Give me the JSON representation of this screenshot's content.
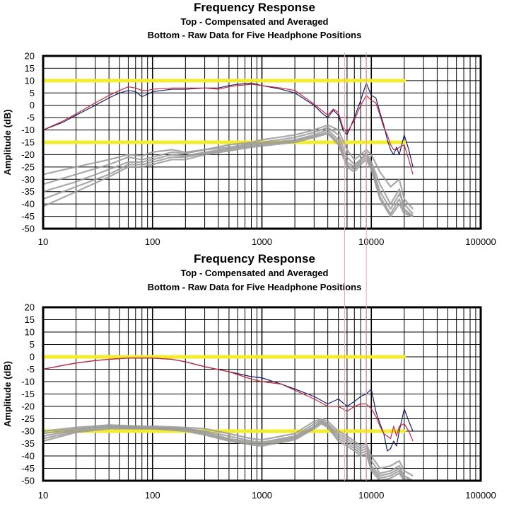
{
  "colors": {
    "compensated_dark": "#1a1f66",
    "compensated_red": "#c8283c",
    "raw": "#9a9a9a",
    "reference": "#f2ec2c",
    "marker": "#e9a8b8",
    "grid": "#000000"
  },
  "chart_data": [
    {
      "type": "line",
      "title": "Frequency Response",
      "subtitle_top": "Top -  Compensated and Averaged",
      "subtitle_bottom": "Bottom - Raw Data for Five Headphone Positions",
      "xlabel": "",
      "ylabel": "Amplitude (dB)",
      "xscale": "log",
      "xlim": [
        10,
        100000
      ],
      "ylim": [
        -50,
        20
      ],
      "x_ticks": [
        10,
        100,
        1000,
        10000,
        100000
      ],
      "x_tick_labels": [
        "10",
        "100",
        "1000",
        "10000",
        "100000"
      ],
      "y_ticks": [
        20,
        15,
        10,
        5,
        0,
        -5,
        -10,
        -15,
        -20,
        -25,
        -30,
        -35,
        -40,
        -45,
        -50
      ],
      "grid": true,
      "reference_lines": [
        10,
        -15
      ],
      "series": [
        {
          "role": "compensated",
          "color_key": "compensated_dark",
          "x": [
            10,
            15,
            20,
            30,
            40,
            50,
            60,
            70,
            80,
            90,
            100,
            150,
            200,
            300,
            400,
            500,
            600,
            800,
            1000,
            1500,
            2000,
            3000,
            3500,
            4000,
            4500,
            5000,
            5500,
            6000,
            7000,
            8000,
            9000,
            10000,
            11000,
            12000,
            13000,
            14000,
            15000,
            16000,
            17000,
            18000,
            20000,
            22000,
            24000
          ],
          "y": [
            -10,
            -7,
            -4,
            0,
            3,
            5,
            6,
            5.5,
            3.5,
            4.5,
            5.5,
            6.5,
            6.5,
            7,
            7,
            8,
            8.5,
            9,
            8,
            6.5,
            5,
            0,
            -3,
            -5,
            -2,
            -4,
            -10,
            -12,
            -5,
            2,
            9,
            4,
            3,
            -3,
            -8,
            -14,
            -18,
            -20,
            -17,
            -20,
            -12,
            -18,
            -25
          ]
        },
        {
          "role": "compensated",
          "color_key": "compensated_red",
          "x": [
            10,
            15,
            20,
            30,
            40,
            50,
            60,
            70,
            80,
            90,
            100,
            150,
            200,
            300,
            400,
            500,
            600,
            800,
            1000,
            1500,
            2000,
            3000,
            3500,
            4000,
            4500,
            5000,
            5500,
            6000,
            7000,
            8000,
            9000,
            10000,
            11000,
            12000,
            13000,
            14000,
            15000,
            16000,
            17000,
            18000,
            20000,
            22000,
            24000
          ],
          "y": [
            -10,
            -6.5,
            -3.5,
            1,
            4,
            6,
            7.5,
            7,
            6,
            6,
            6.5,
            7,
            7,
            7,
            6.5,
            7.5,
            8,
            8.5,
            8,
            7,
            6,
            0.5,
            -2,
            -4,
            -1.5,
            -3,
            -9,
            -11,
            -6,
            0,
            4,
            2,
            1,
            -4,
            -9,
            -12,
            -16,
            -18,
            -18,
            -17,
            -16,
            -22,
            -28
          ]
        },
        {
          "role": "raw",
          "color_key": "raw",
          "x": [
            10,
            20,
            40,
            60,
            80,
            100,
            150,
            200,
            300,
            500,
            800,
            1000,
            2000,
            3000,
            4000,
            5000,
            6000,
            7000,
            8000,
            9000,
            10000,
            12000,
            15000,
            18000,
            20000,
            24000
          ],
          "y": [
            -28,
            -25,
            -22,
            -20,
            -20.5,
            -19,
            -18,
            -19,
            -18,
            -16,
            -15,
            -14,
            -12,
            -10,
            -8,
            -10,
            -18,
            -22,
            -20,
            -18,
            -20,
            -27,
            -33,
            -30,
            -38,
            -42
          ]
        },
        {
          "role": "raw",
          "color_key": "raw",
          "x": [
            10,
            20,
            40,
            60,
            80,
            100,
            150,
            200,
            300,
            500,
            800,
            1000,
            2000,
            3000,
            4000,
            5000,
            6000,
            7000,
            8000,
            9000,
            10000,
            12000,
            15000,
            18000,
            20000,
            24000
          ],
          "y": [
            -32,
            -28,
            -24,
            -21,
            -22,
            -21,
            -19,
            -19.5,
            -18,
            -17,
            -15.5,
            -15,
            -13,
            -11,
            -9,
            -12,
            -21,
            -24,
            -22,
            -19,
            -23,
            -32,
            -40,
            -34,
            -42,
            -45
          ]
        },
        {
          "role": "raw",
          "color_key": "raw",
          "x": [
            10,
            20,
            40,
            60,
            80,
            100,
            150,
            200,
            300,
            500,
            800,
            1000,
            2000,
            3000,
            4000,
            5000,
            6000,
            7000,
            8000,
            9000,
            10000,
            12000,
            15000,
            18000,
            20000,
            24000
          ],
          "y": [
            -35,
            -31,
            -26,
            -23,
            -23,
            -22,
            -20,
            -20.5,
            -19,
            -17.5,
            -16,
            -15.5,
            -14,
            -12,
            -10,
            -14,
            -23,
            -25,
            -22,
            -20,
            -24,
            -35,
            -42,
            -36,
            -40,
            -44
          ]
        },
        {
          "role": "raw",
          "color_key": "raw",
          "x": [
            10,
            20,
            40,
            60,
            80,
            100,
            150,
            200,
            300,
            500,
            800,
            1000,
            2000,
            3000,
            4000,
            5000,
            6000,
            7000,
            8000,
            9000,
            10000,
            12000,
            15000,
            18000,
            20000,
            24000
          ],
          "y": [
            -38,
            -33,
            -28,
            -24,
            -24,
            -23,
            -21,
            -21,
            -19.5,
            -18,
            -16.5,
            -16,
            -14.5,
            -12.5,
            -11,
            -15,
            -24,
            -26,
            -23,
            -21,
            -25,
            -37,
            -44,
            -38,
            -43,
            -45
          ]
        },
        {
          "role": "raw",
          "color_key": "raw",
          "x": [
            10,
            20,
            40,
            60,
            80,
            100,
            150,
            200,
            300,
            500,
            800,
            1000,
            2000,
            3000,
            4000,
            5000,
            6000,
            7000,
            8000,
            9000,
            10000,
            12000,
            15000,
            18000,
            20000,
            24000
          ],
          "y": [
            -41,
            -35,
            -29,
            -25,
            -25,
            -24,
            -22,
            -22,
            -20,
            -18.5,
            -17,
            -16.5,
            -15,
            -13,
            -11.5,
            -16,
            -25,
            -27,
            -24,
            -22,
            -26,
            -38,
            -45,
            -40,
            -44,
            -45
          ]
        }
      ]
    },
    {
      "type": "line",
      "title": "Frequency Response",
      "subtitle_top": "Top -  Compensated and Averaged",
      "subtitle_bottom": "Bottom - Raw Data for Five Headphone Positions",
      "xlabel": "",
      "ylabel": "Amplitude (dB)",
      "xscale": "log",
      "xlim": [
        10,
        100000
      ],
      "ylim": [
        -50,
        20
      ],
      "x_ticks": [
        10,
        100,
        1000,
        10000,
        100000
      ],
      "x_tick_labels": [
        "10",
        "100",
        "1000",
        "10000",
        "100000"
      ],
      "y_ticks": [
        20,
        15,
        10,
        5,
        0,
        -5,
        -10,
        -15,
        -20,
        -25,
        -30,
        -35,
        -40,
        -45,
        -50
      ],
      "grid": true,
      "reference_lines": [
        0,
        -30
      ],
      "series": [
        {
          "role": "compensated",
          "color_key": "compensated_dark",
          "x": [
            10,
            15,
            20,
            30,
            40,
            60,
            100,
            150,
            200,
            300,
            500,
            800,
            1000,
            1500,
            2000,
            3000,
            4000,
            5000,
            6000,
            7000,
            8000,
            9000,
            10000,
            11000,
            12000,
            13000,
            14000,
            15000,
            16000,
            17000,
            18000,
            20000,
            22000,
            24000
          ],
          "y": [
            -5,
            -3.5,
            -2.5,
            -1.5,
            -1,
            -0.5,
            -0.5,
            -1,
            -2,
            -4,
            -6,
            -8,
            -8.5,
            -11,
            -13,
            -16,
            -19,
            -17,
            -20,
            -18,
            -16,
            -15,
            -13,
            -22,
            -27,
            -31,
            -38,
            -37,
            -34,
            -36,
            -30,
            -21,
            -26,
            -30
          ]
        },
        {
          "role": "compensated",
          "color_key": "compensated_red",
          "x": [
            10,
            15,
            20,
            30,
            40,
            60,
            100,
            150,
            200,
            300,
            500,
            800,
            1000,
            1500,
            2000,
            3000,
            4000,
            5000,
            6000,
            7000,
            8000,
            9000,
            10000,
            11000,
            12000,
            13000,
            14000,
            15000,
            16000,
            17000,
            18000,
            20000,
            22000,
            24000
          ],
          "y": [
            -5,
            -3.5,
            -2.5,
            -1.5,
            -1,
            -0.5,
            -0.5,
            -1,
            -2,
            -4,
            -6,
            -9,
            -10,
            -11,
            -13.5,
            -17,
            -20,
            -20,
            -22,
            -20,
            -19,
            -19,
            -21,
            -24,
            -28,
            -31,
            -32,
            -33,
            -28,
            -32,
            -28,
            -27,
            -30,
            -34
          ]
        },
        {
          "role": "raw",
          "color_key": "raw",
          "x": [
            10,
            20,
            40,
            80,
            100,
            200,
            300,
            500,
            800,
            1000,
            1500,
            2000,
            3000,
            3500,
            4000,
            5000,
            6000,
            7000,
            8000,
            9000,
            10000,
            12000,
            15000,
            18000,
            20000,
            24000
          ],
          "y": [
            -30,
            -28.5,
            -27.5,
            -28,
            -28,
            -28.5,
            -29,
            -31,
            -33,
            -33.5,
            -32,
            -31,
            -26,
            -25,
            -26,
            -30,
            -32,
            -34,
            -36,
            -35,
            -40,
            -45,
            -44,
            -42,
            -46,
            -48
          ]
        },
        {
          "role": "raw",
          "color_key": "raw",
          "x": [
            10,
            20,
            40,
            80,
            100,
            200,
            300,
            500,
            800,
            1000,
            1500,
            2000,
            3000,
            3500,
            4000,
            5000,
            6000,
            7000,
            8000,
            9000,
            10000,
            12000,
            15000,
            18000,
            20000,
            24000
          ],
          "y": [
            -31,
            -29,
            -28,
            -28.5,
            -28.5,
            -29,
            -30,
            -32,
            -34,
            -34.5,
            -33,
            -32,
            -27,
            -25.5,
            -27,
            -31,
            -33,
            -35,
            -37,
            -36,
            -42,
            -47,
            -46,
            -44,
            -48,
            -50
          ]
        },
        {
          "role": "raw",
          "color_key": "raw",
          "x": [
            10,
            20,
            40,
            80,
            100,
            200,
            300,
            500,
            800,
            1000,
            1500,
            2000,
            3000,
            3500,
            4000,
            5000,
            6000,
            7000,
            8000,
            9000,
            10000,
            12000,
            15000,
            18000,
            20000,
            24000
          ],
          "y": [
            -32,
            -29.5,
            -28,
            -28.5,
            -28.5,
            -29,
            -30.5,
            -33,
            -34.5,
            -35,
            -33.5,
            -32.5,
            -28,
            -26,
            -27.5,
            -32,
            -34,
            -36,
            -38,
            -37,
            -44,
            -48,
            -47,
            -45,
            -49,
            -50
          ]
        },
        {
          "role": "raw",
          "color_key": "raw",
          "x": [
            10,
            20,
            40,
            80,
            100,
            200,
            300,
            500,
            800,
            1000,
            1500,
            2000,
            3000,
            3500,
            4000,
            5000,
            6000,
            7000,
            8000,
            9000,
            10000,
            12000,
            15000,
            18000,
            20000,
            24000
          ],
          "y": [
            -33,
            -30,
            -28.5,
            -29,
            -29,
            -29.5,
            -31,
            -33.5,
            -35,
            -35.5,
            -34,
            -33,
            -28.5,
            -26.5,
            -28,
            -33,
            -35,
            -37,
            -39,
            -38,
            -45,
            -49,
            -48,
            -46,
            -50,
            -50
          ]
        },
        {
          "role": "raw",
          "color_key": "raw",
          "x": [
            10,
            20,
            40,
            80,
            100,
            200,
            300,
            500,
            800,
            1000,
            1500,
            2000,
            3000,
            3500,
            4000,
            5000,
            6000,
            7000,
            8000,
            9000,
            10000,
            12000,
            15000,
            18000,
            20000,
            24000
          ],
          "y": [
            -34,
            -30.5,
            -29,
            -29,
            -29,
            -30,
            -31.5,
            -34,
            -35.5,
            -36,
            -34.5,
            -33.5,
            -29,
            -27,
            -28.5,
            -34,
            -36,
            -38,
            -40,
            -39,
            -46,
            -50,
            -49,
            -47,
            -50,
            -50
          ]
        }
      ]
    }
  ]
}
